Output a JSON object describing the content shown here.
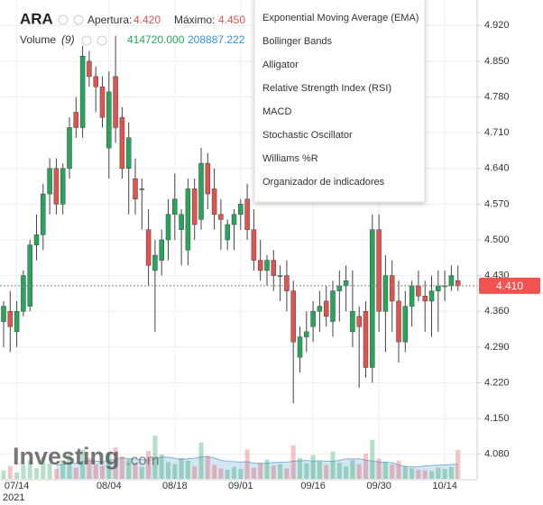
{
  "header": {
    "symbol": "ARA",
    "open_label": "Apertura:",
    "open_value": "4.420",
    "high_label": "Máximo:",
    "high_value": "4.450",
    "volume_label": "Volume",
    "volume_period": "(9)",
    "volume_value": "414720.000",
    "volume_ma_value": "208887.222"
  },
  "menu": {
    "items": [
      "Exponential Moving Average (EMA)",
      "Bollinger Bands",
      "Alligator",
      "Relative Strength Index (RSI)",
      "MACD",
      "Stochastic Oscillator",
      "Williams %R",
      "Organizador de indicadores"
    ]
  },
  "watermark": {
    "brand": "Investing",
    ".com": ".com"
  },
  "chart_data": {
    "type": "candlestick",
    "categories": [
      null,
      null,
      "07/14",
      null,
      null,
      null,
      null,
      null,
      null,
      null,
      null,
      null,
      null,
      null,
      null,
      null,
      "08/04",
      null,
      null,
      null,
      null,
      null,
      null,
      null,
      null,
      null,
      "08/18",
      null,
      null,
      null,
      null,
      null,
      null,
      null,
      null,
      null,
      "09/01",
      null,
      null,
      null,
      null,
      null,
      null,
      null,
      null,
      null,
      null,
      "09/16",
      null,
      null,
      null,
      null,
      null,
      null,
      null,
      null,
      null,
      "09/30",
      null,
      null,
      null,
      null,
      null,
      null,
      null,
      null,
      null,
      "10/14",
      null,
      null
    ],
    "year_label": "2021",
    "open": [
      4.34,
      4.36,
      4.32,
      4.36,
      4.37,
      4.49,
      4.51,
      4.59,
      4.64,
      4.57,
      4.64,
      4.75,
      4.72,
      4.85,
      4.82,
      4.8,
      4.68,
      4.82,
      4.74,
      4.64,
      4.62,
      4.6,
      4.52,
      4.44,
      4.46,
      4.5,
      4.55,
      4.52,
      4.48,
      4.6,
      4.54,
      4.65,
      4.6,
      4.55,
      4.5,
      4.53,
      4.55,
      4.58,
      4.52,
      4.46,
      4.44,
      4.46,
      4.43,
      4.43,
      4.4,
      4.27,
      4.31,
      4.33,
      4.36,
      4.38,
      4.34,
      4.4,
      4.41,
      4.32,
      4.35,
      4.36,
      4.25,
      4.52,
      4.36,
      4.43,
      4.38,
      4.3,
      4.37,
      4.41,
      4.39,
      4.38,
      4.4,
      4.41,
      4.41,
      4.42
    ],
    "high": [
      4.38,
      4.4,
      4.38,
      4.44,
      4.5,
      4.55,
      4.61,
      4.66,
      4.66,
      4.65,
      4.74,
      4.78,
      4.88,
      4.87,
      4.84,
      4.82,
      4.83,
      4.9,
      4.76,
      4.73,
      4.66,
      4.62,
      4.56,
      4.5,
      4.52,
      4.58,
      4.63,
      4.56,
      4.62,
      4.62,
      4.68,
      4.67,
      4.64,
      4.58,
      4.54,
      4.56,
      4.58,
      4.61,
      4.56,
      4.5,
      4.47,
      4.48,
      4.45,
      4.46,
      4.42,
      4.33,
      4.36,
      4.38,
      4.4,
      4.41,
      4.42,
      4.44,
      4.45,
      4.44,
      4.37,
      4.38,
      4.55,
      4.55,
      4.47,
      4.46,
      4.42,
      4.4,
      4.42,
      4.44,
      4.42,
      4.43,
      4.44,
      4.44,
      4.45,
      4.45
    ],
    "low": [
      4.29,
      4.28,
      4.29,
      4.35,
      4.36,
      4.46,
      4.48,
      4.55,
      4.55,
      4.55,
      4.62,
      4.7,
      4.7,
      4.8,
      4.75,
      4.72,
      4.62,
      4.69,
      4.62,
      4.55,
      4.55,
      4.52,
      4.41,
      4.32,
      4.43,
      4.46,
      4.5,
      4.45,
      4.45,
      4.5,
      4.52,
      4.56,
      4.52,
      4.48,
      4.48,
      4.48,
      4.52,
      4.5,
      4.44,
      4.42,
      4.41,
      4.4,
      4.38,
      4.36,
      4.18,
      4.24,
      4.28,
      4.3,
      4.32,
      4.33,
      4.31,
      4.34,
      4.36,
      4.29,
      4.21,
      4.23,
      4.22,
      4.32,
      4.28,
      4.32,
      4.26,
      4.28,
      4.33,
      4.38,
      4.32,
      4.31,
      4.32,
      4.38,
      4.4,
      4.4
    ],
    "close": [
      4.37,
      4.33,
      4.36,
      4.43,
      4.49,
      4.51,
      4.59,
      4.64,
      4.57,
      4.64,
      4.72,
      4.72,
      4.86,
      4.82,
      4.8,
      4.74,
      4.79,
      4.72,
      4.64,
      4.7,
      4.58,
      4.6,
      4.45,
      4.47,
      4.5,
      4.55,
      4.58,
      4.55,
      4.6,
      4.53,
      4.65,
      4.59,
      4.55,
      4.54,
      4.53,
      4.55,
      4.57,
      4.52,
      4.46,
      4.44,
      4.46,
      4.43,
      4.43,
      4.4,
      4.3,
      4.31,
      4.32,
      4.36,
      4.37,
      4.35,
      4.4,
      4.41,
      4.42,
      4.36,
      4.33,
      4.25,
      4.52,
      4.36,
      4.43,
      4.38,
      4.3,
      4.37,
      4.41,
      4.39,
      4.38,
      4.4,
      4.41,
      4.41,
      4.43,
      4.41
    ],
    "volume": [
      120000,
      180000,
      90000,
      200000,
      260000,
      150000,
      310000,
      220000,
      140000,
      270000,
      350000,
      160000,
      420000,
      300000,
      210000,
      190000,
      380000,
      450000,
      320000,
      280000,
      230000,
      170000,
      400000,
      620000,
      350000,
      240000,
      210000,
      300000,
      260000,
      180000,
      520000,
      330000,
      200000,
      150000,
      130000,
      170000,
      140000,
      420000,
      160000,
      230000,
      280000,
      190000,
      210000,
      150000,
      480000,
      300000,
      220000,
      340000,
      250000,
      200000,
      390000,
      230000,
      180000,
      270000,
      210000,
      360000,
      560000,
      290000,
      240000,
      200000,
      260000,
      180000,
      150000,
      130000,
      120000,
      110000,
      160000,
      140000,
      170000,
      414720
    ],
    "volume_ma": [
      null,
      null,
      null,
      null,
      null,
      null,
      null,
      null,
      196667,
      205556,
      228889,
      224444,
      248889,
      257778,
      253333,
      244444,
      260000,
      283333,
      302222,
      290000,
      282222,
      276667,
      267778,
      284444,
      313333,
      310000,
      293333,
      280000,
      288889,
      296667,
      313333,
      317778,
      300000,
      265556,
      250000,
      246667,
      238889,
      245556,
      224444,
      218889,
      224444,
      234444,
      237778,
      240000,
      251111,
      260000,
      263333,
      251111,
      258889,
      253333,
      250000,
      264444,
      285556,
      285556,
      286667,
      268889,
      254444,
      241111,
      240000,
      231111,
      199444,
      180000,
      168889,
      172222,
      185556,
      190000,
      195000,
      200000,
      205000,
      208887.222
    ],
    "up_color": "#26a65b",
    "down_color": "#e0534f",
    "volume_ma_color": "#b8d4ec",
    "ylim": [
      4.03,
      4.97
    ],
    "yticks": [
      {
        "value": 4.08,
        "label": "4.080"
      },
      {
        "value": 4.15,
        "label": "4.150"
      },
      {
        "value": 4.22,
        "label": "4.220"
      },
      {
        "value": 4.29,
        "label": "4.290"
      },
      {
        "value": 4.36,
        "label": "4.360"
      },
      {
        "value": 4.43,
        "label": "4.430"
      },
      {
        "value": 4.5,
        "label": "4.500"
      },
      {
        "value": 4.57,
        "label": "4.570"
      },
      {
        "value": 4.64,
        "label": "4.640"
      },
      {
        "value": 4.71,
        "label": "4.710"
      },
      {
        "value": 4.78,
        "label": "4.780"
      },
      {
        "value": 4.85,
        "label": "4.850"
      },
      {
        "value": 4.92,
        "label": "4.920"
      }
    ],
    "last_price": {
      "value": 4.41,
      "label": "4.410"
    },
    "grid": true
  }
}
